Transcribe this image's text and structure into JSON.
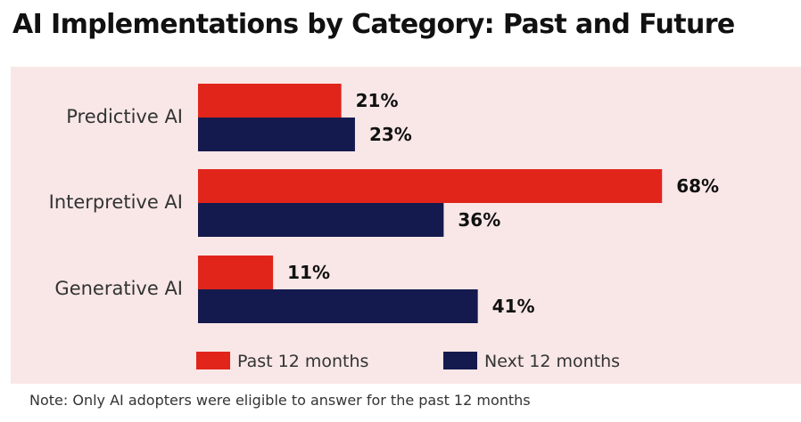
{
  "title": "AI Implementations by Category: Past and Future",
  "note": "Note: Only AI adopters were eligible to answer for the past 12 months",
  "colors": {
    "background_panel": "#f9e7e7",
    "past": "#e1251b",
    "next": "#141a4e"
  },
  "chart_data": {
    "type": "bar",
    "orientation": "horizontal",
    "categories": [
      "Predictive AI",
      "Interpretive AI",
      "Generative AI"
    ],
    "series": [
      {
        "name": "Past 12 months",
        "values": [
          21,
          68,
          11
        ],
        "labels": [
          "21%",
          "68%",
          "11%"
        ],
        "color": "#e1251b"
      },
      {
        "name": "Next 12 months",
        "values": [
          23,
          36,
          41
        ],
        "labels": [
          "23%",
          "36%",
          "41%"
        ],
        "color": "#141a4e"
      }
    ],
    "xlim": [
      0,
      100
    ],
    "grid": false,
    "legend_position": "bottom"
  }
}
